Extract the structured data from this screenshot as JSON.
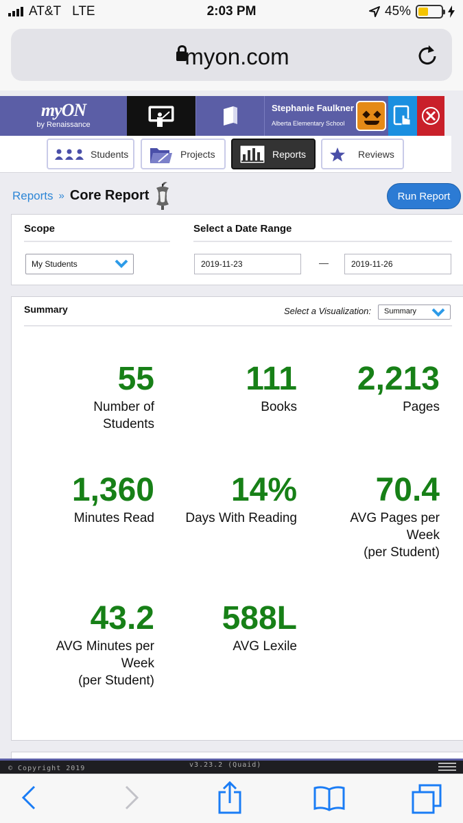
{
  "status": {
    "carrier": "AT&T",
    "network": "LTE",
    "time": "2:03 PM",
    "battery": "45%",
    "battery_level": 0.45
  },
  "browser": {
    "url": "myon.com"
  },
  "header": {
    "logo_text": "myON",
    "logo_sub": "by Renaissance",
    "user_name": "Stephanie Faulkner",
    "school": "Alberta Elementary School"
  },
  "nav": [
    {
      "label": "Students",
      "icon": "students-icon"
    },
    {
      "label": "Projects",
      "icon": "projects-icon"
    },
    {
      "label": "Reports",
      "icon": "reports-icon",
      "active": true
    },
    {
      "label": "Reviews",
      "icon": "star-icon"
    }
  ],
  "breadcrumb": {
    "parent": "Reports",
    "separator": "»",
    "current": "Core Report"
  },
  "run_report": "Run Report",
  "scope": {
    "title": "Scope",
    "selected": "My Students",
    "date_title": "Select a Date Range",
    "start_date": "2019-11-23",
    "end_date": "2019-11-26",
    "dash": "—"
  },
  "summary": {
    "title": "Summary",
    "viz_label": "Select a Visualization:",
    "viz_selected": "Summary",
    "stats": [
      {
        "value": "55",
        "label_lines": [
          "Number of",
          "Students"
        ]
      },
      {
        "value": "111",
        "label_lines": [
          "Books"
        ]
      },
      {
        "value": "2,213",
        "label_lines": [
          "Pages"
        ]
      },
      {
        "value": "1,360",
        "label_lines": [
          "Minutes Read"
        ]
      },
      {
        "value": "14%",
        "label_lines": [
          "Days With Reading"
        ]
      },
      {
        "value": "70.4",
        "label_lines": [
          "AVG Pages per",
          "Week",
          "(per Student)"
        ]
      },
      {
        "value": "43.2",
        "label_lines": [
          "AVG Minutes per",
          "Week",
          "(per Student)"
        ]
      },
      {
        "value": "588L",
        "label_lines": [
          "AVG Lexile"
        ]
      }
    ]
  },
  "footer": {
    "copyright": "© Copyright 2019",
    "version": "v3.23.2 (Quaid)"
  },
  "colors": {
    "brand_purple": "#5b5ea6",
    "stat_green": "#178017",
    "link_blue": "#2d86d6",
    "run_button": "#2c7bd4"
  }
}
